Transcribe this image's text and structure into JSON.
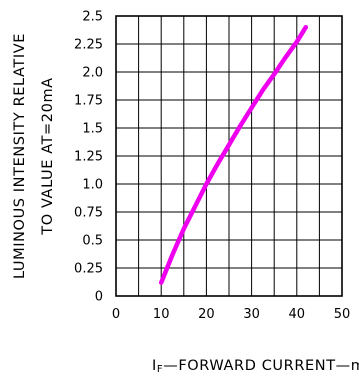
{
  "chart_data": {
    "type": "line",
    "title": "",
    "xlabel": "I F —FORWARD CURRENT—mA",
    "xlabel_parts": {
      "symbol": "I",
      "subscript": "F",
      "text": "—FORWARD CURRENT—mA"
    },
    "ylabel_lines": [
      "LUMINOUS INTENSITY RELATIVE",
      "TO VALUE AT=20mA"
    ],
    "xlim": [
      0,
      50
    ],
    "ylim": [
      0,
      2.5
    ],
    "x_ticks": [
      "0",
      "10",
      "20",
      "30",
      "40",
      "50"
    ],
    "y_ticks": [
      "0",
      "0.25",
      "0.5",
      "0.75",
      "1.0",
      "1.25",
      "1.5",
      "1.75",
      "2.0",
      "2.25",
      "2.5"
    ],
    "grid": true,
    "series": [
      {
        "color": "#ee00ee",
        "x": [
          10,
          12.5,
          15,
          17.5,
          20,
          22.5,
          25,
          27.5,
          30,
          32.5,
          35,
          37.5,
          40,
          42
        ],
        "y": [
          0.12,
          0.37,
          0.6,
          0.8,
          1.0,
          1.18,
          1.35,
          1.52,
          1.68,
          1.84,
          1.98,
          2.13,
          2.27,
          2.4
        ]
      }
    ]
  }
}
